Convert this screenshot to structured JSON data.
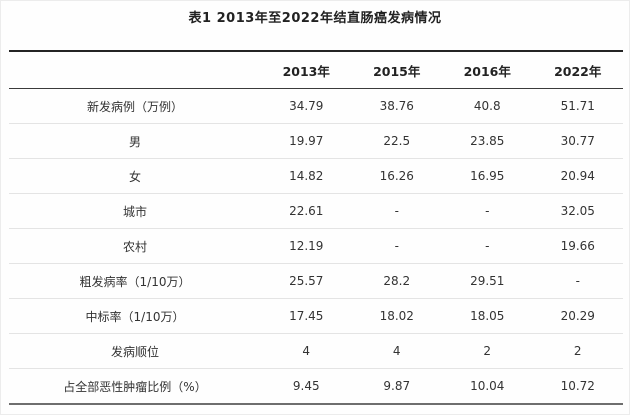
{
  "title": "表1 2013年至2022年结直肠癌发病情况",
  "table": {
    "columns": [
      "",
      "2013年",
      "2015年",
      "2016年",
      "2022年"
    ],
    "rows": [
      {
        "label": "新发病例（万例）",
        "values": [
          "34.79",
          "38.76",
          "40.8",
          "51.71"
        ]
      },
      {
        "label": "男",
        "values": [
          "19.97",
          "22.5",
          "23.85",
          "30.77"
        ]
      },
      {
        "label": "女",
        "values": [
          "14.82",
          "16.26",
          "16.95",
          "20.94"
        ]
      },
      {
        "label": "城市",
        "values": [
          "22.61",
          "-",
          "-",
          "32.05"
        ]
      },
      {
        "label": "农村",
        "values": [
          "12.19",
          "-",
          "-",
          "19.66"
        ]
      },
      {
        "label": "粗发病率（1/10万）",
        "values": [
          "25.57",
          "28.2",
          "29.51",
          "-"
        ]
      },
      {
        "label": "中标率（1/10万）",
        "values": [
          "17.45",
          "18.02",
          "18.05",
          "20.29"
        ]
      },
      {
        "label": "发病顺位",
        "values": [
          "4",
          "4",
          "2",
          "2"
        ]
      },
      {
        "label": "占全部恶性肿瘤比例（%）",
        "values": [
          "9.45",
          "9.87",
          "10.04",
          "10.72"
        ]
      }
    ]
  },
  "colors": {
    "title_text": "#222222",
    "cell_text": "#333333",
    "top_rule": "#242424",
    "header_rule": "#3a3a3a",
    "row_rule": "#e4e4e4",
    "bottom_rule": "#6e6e6e",
    "background": "#fefefe"
  }
}
